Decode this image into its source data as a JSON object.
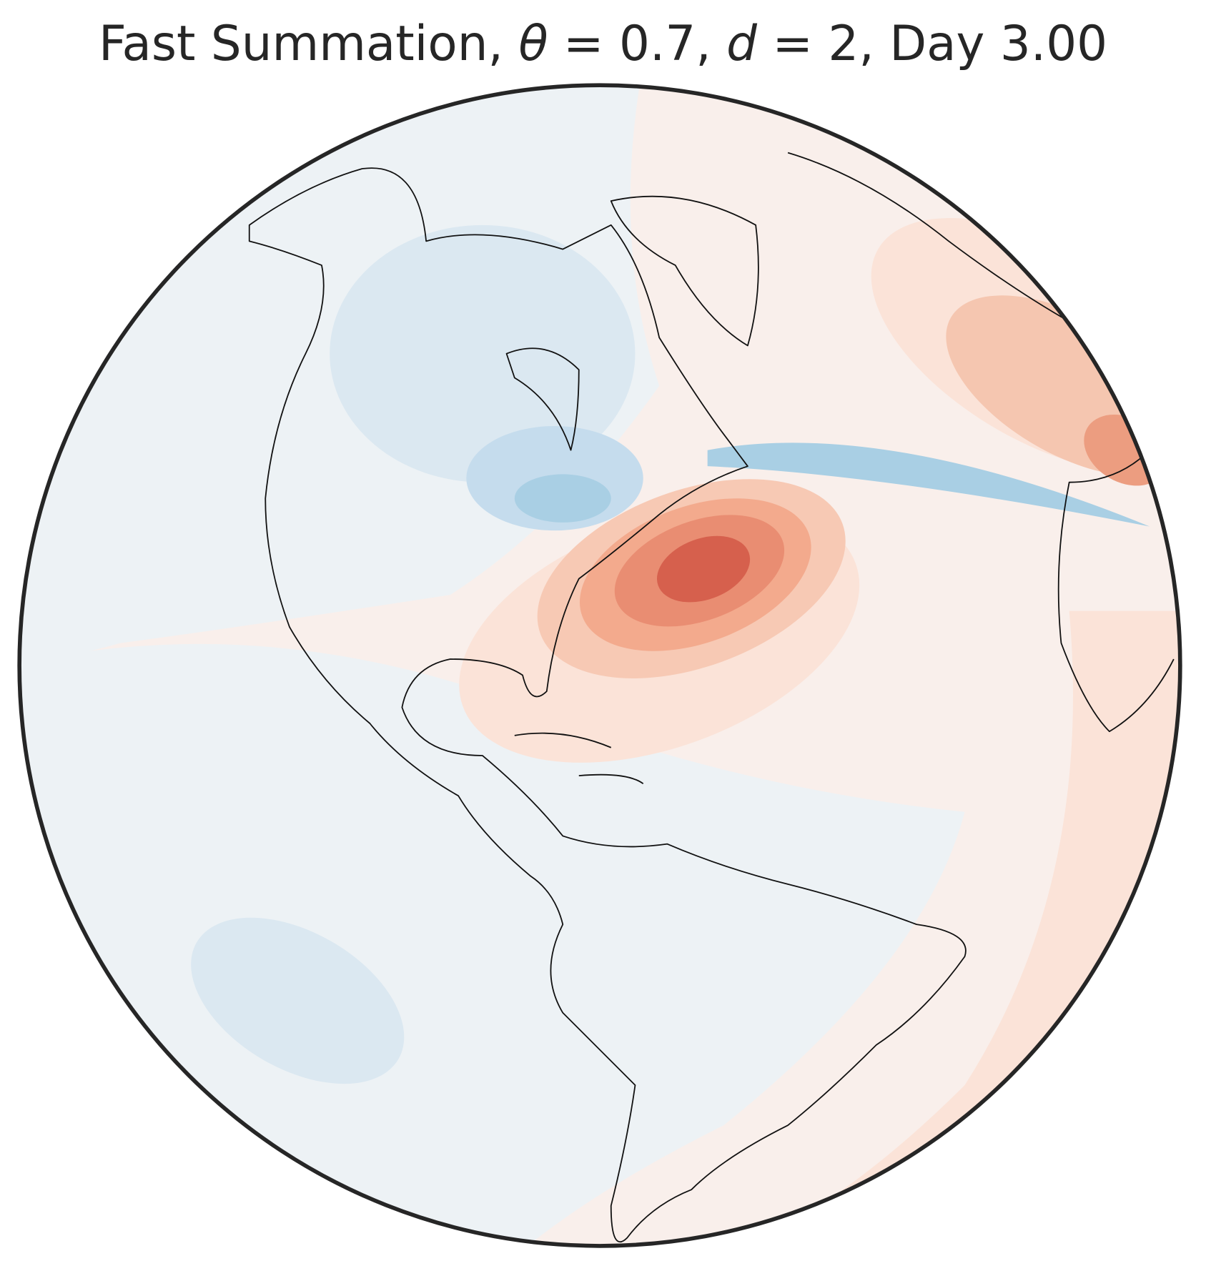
{
  "title": {
    "parts": [
      "Fast Summation, ",
      "θ",
      " = 0.7, ",
      "d",
      " = 2, Day 3.00"
    ]
  }
}
